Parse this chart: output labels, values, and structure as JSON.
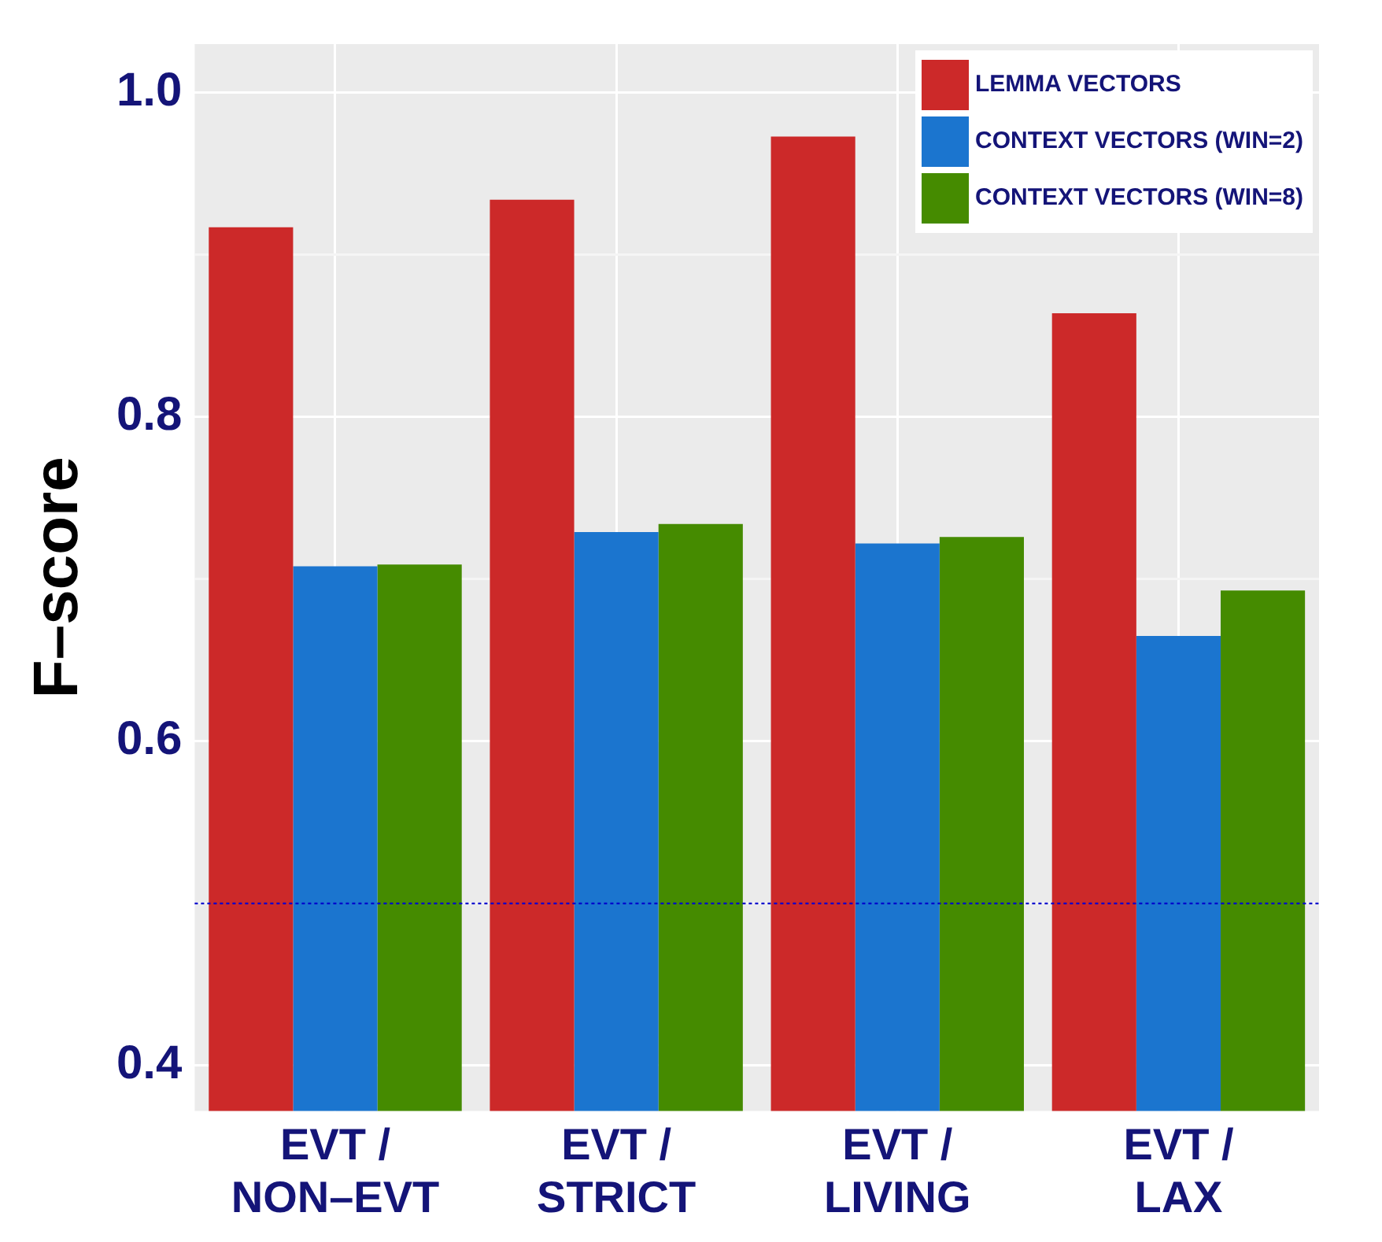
{
  "chart_data": {
    "type": "bar",
    "ylabel": "F–score",
    "categories": [
      "EVT /\nNON–EVT",
      "EVT /\nSTRICT",
      "EVT /\nLIVING",
      "EVT /\nLAX"
    ],
    "series": [
      {
        "name": "LEMMA VECTORS",
        "color": "#cc2929",
        "values": [
          0.917,
          0.934,
          0.973,
          0.864
        ]
      },
      {
        "name": "CONTEXT VECTORS (WIN=2)",
        "color": "#1b75cf",
        "values": [
          0.708,
          0.729,
          0.722,
          0.665
        ]
      },
      {
        "name": "CONTEXT VECTORS (WIN=8)",
        "color": "#458b00",
        "values": [
          0.709,
          0.734,
          0.726,
          0.693
        ]
      }
    ],
    "ylim": [
      0.372,
      1.03
    ],
    "yticks": [
      0.4,
      {
        "value": 0.5,
        "label": null
      },
      0.6,
      {
        "value": 0.7,
        "label": null
      },
      0.8,
      {
        "value": 0.9,
        "label": null
      },
      {
        "value": 1.0,
        "label": "1.0"
      }
    ],
    "ref_lines": [
      {
        "axis": "y",
        "value": 0.5,
        "color": "#0000cc",
        "line_style": "dotted"
      }
    ],
    "grid": true,
    "legend": "top right"
  }
}
